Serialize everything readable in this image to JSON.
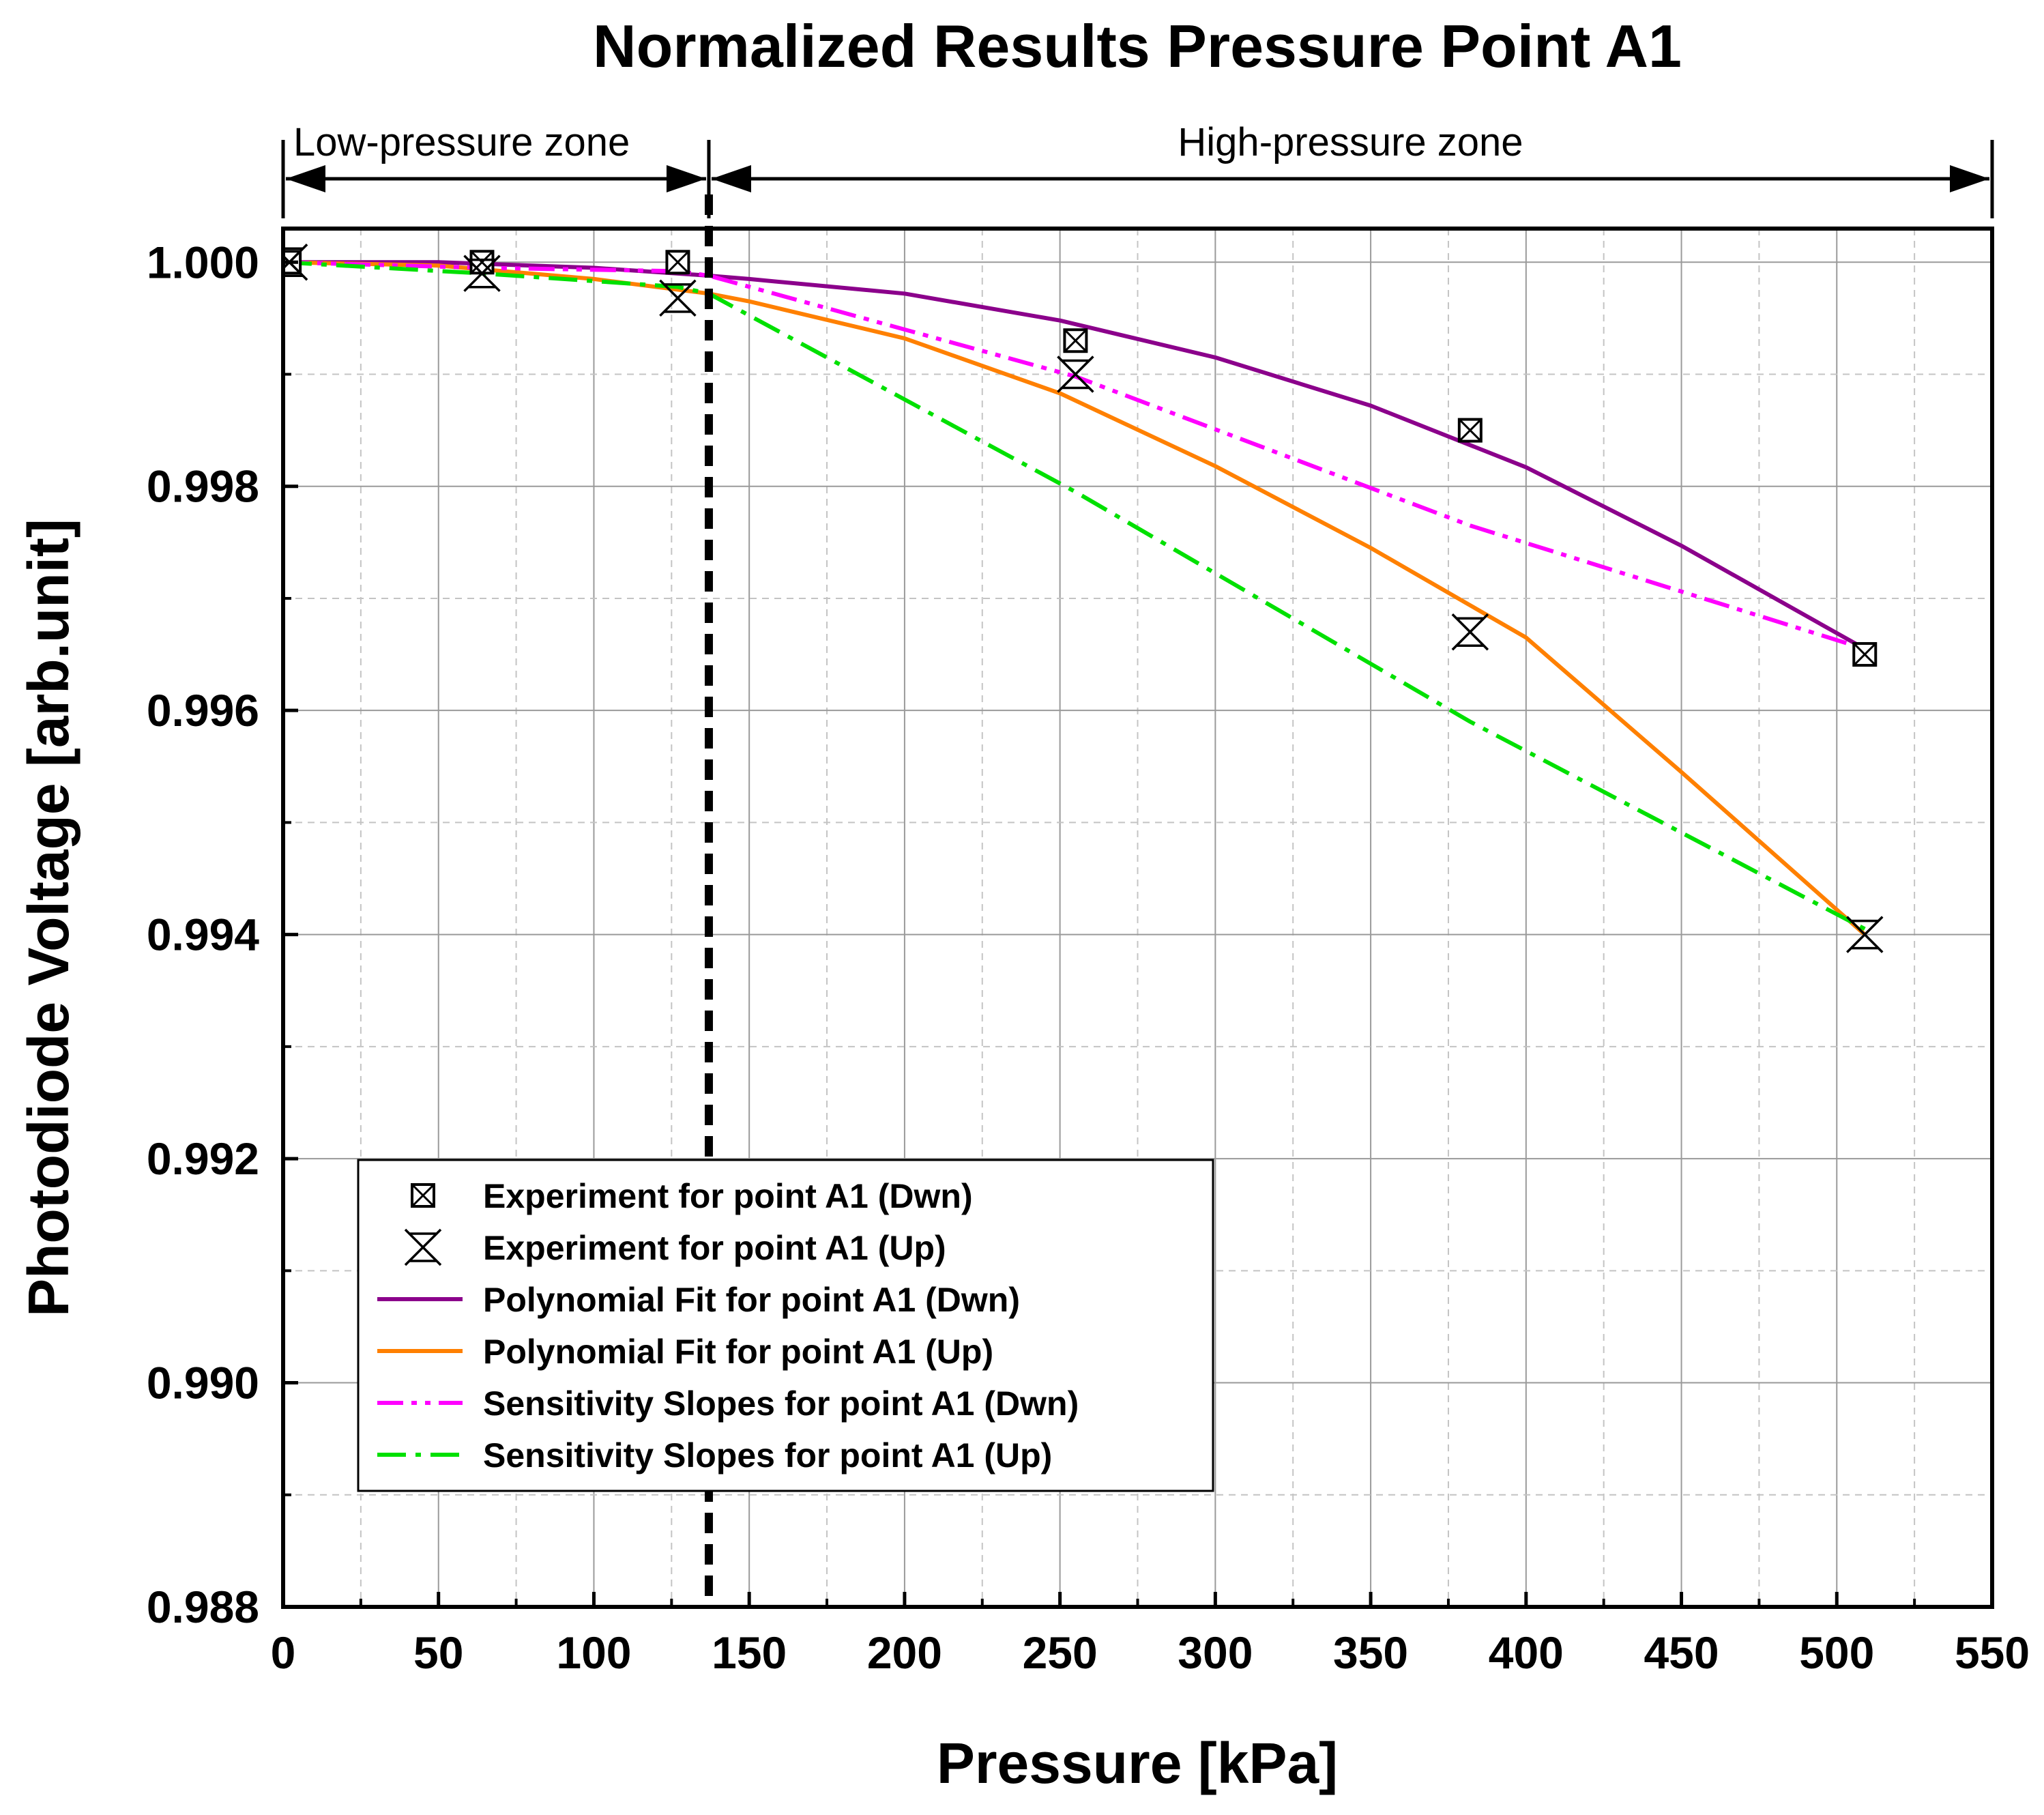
{
  "chart_data": {
    "type": "line",
    "title": "Normalized Results Pressure Point A1",
    "xlabel": "Pressure [kPa]",
    "ylabel": "Photodiode Voltage [arb.unit]",
    "xlim": [
      0,
      550
    ],
    "ylim": [
      0.988,
      1.0003
    ],
    "x_ticks": [
      0,
      50,
      100,
      150,
      200,
      250,
      300,
      350,
      400,
      450,
      500,
      550
    ],
    "x_tick_labels": [
      "0",
      "50",
      "100",
      "150",
      "200",
      "250",
      "300",
      "350",
      "400",
      "450",
      "500",
      "550"
    ],
    "y_ticks": [
      0.988,
      0.99,
      0.992,
      0.994,
      0.996,
      0.998,
      1.0
    ],
    "y_tick_labels": [
      "0.988",
      "0.990",
      "0.992",
      "0.994",
      "0.996",
      "0.998",
      "1.000"
    ],
    "grid": true,
    "legend_position": "bottom-left",
    "divider_x": 137,
    "zones": [
      {
        "label": "Low-pressure zone",
        "from": 0,
        "to": 137
      },
      {
        "label": "High-pressure zone",
        "from": 137,
        "to": 550
      }
    ],
    "series": [
      {
        "name": "Experiment for point A1 (Dwn)",
        "kind": "scatter",
        "marker": "square-x",
        "color": "#000000",
        "x": [
          2,
          64,
          127,
          255,
          382,
          509
        ],
        "y": [
          1.0,
          1.0,
          1.0,
          0.9993,
          0.9985,
          0.9965
        ]
      },
      {
        "name": "Experiment for point A1 (Up)",
        "kind": "scatter",
        "marker": "hourglass-x",
        "color": "#000000",
        "x": [
          2,
          64,
          127,
          255,
          382,
          509
        ],
        "y": [
          1.0,
          0.9999,
          0.99968,
          0.999,
          0.9967,
          0.994
        ]
      },
      {
        "name": "Polynomial Fit for point A1 (Dwn)",
        "kind": "line",
        "dash": "solid",
        "color": "#8B008B",
        "x": [
          0,
          50,
          100,
          137,
          150,
          200,
          250,
          300,
          350,
          400,
          450,
          509
        ],
        "y": [
          1.0,
          1.0,
          0.99995,
          0.99988,
          0.99985,
          0.99972,
          0.99948,
          0.99915,
          0.99872,
          0.99817,
          0.99747,
          0.99655
        ]
      },
      {
        "name": "Polynomial Fit for point A1 (Up)",
        "kind": "line",
        "dash": "solid",
        "color": "#FF8000",
        "x": [
          0,
          50,
          100,
          137,
          150,
          200,
          250,
          300,
          350,
          400,
          450,
          509
        ],
        "y": [
          1.0,
          0.99997,
          0.99985,
          0.99972,
          0.99965,
          0.99932,
          0.99883,
          0.99818,
          0.99745,
          0.99665,
          0.99545,
          0.994
        ]
      },
      {
        "name": "Sensitivity Slopes for point A1 (Dwn)",
        "kind": "line",
        "dash": "dash-dot-dot",
        "color": "#FF00FF",
        "x": [
          0,
          64,
          127,
          137,
          255,
          382,
          509
        ],
        "y": [
          1.0,
          0.99995,
          0.99992,
          0.99988,
          0.99898,
          0.99765,
          0.99655
        ]
      },
      {
        "name": "Sensitivity Slopes for point A1 (Up)",
        "kind": "line",
        "dash": "dash-dot",
        "color": "#00E000",
        "x": [
          0,
          64,
          127,
          137,
          255,
          382,
          509
        ],
        "y": [
          1.0,
          0.9999,
          0.99978,
          0.99972,
          0.99795,
          0.9959,
          0.99405
        ]
      }
    ]
  }
}
